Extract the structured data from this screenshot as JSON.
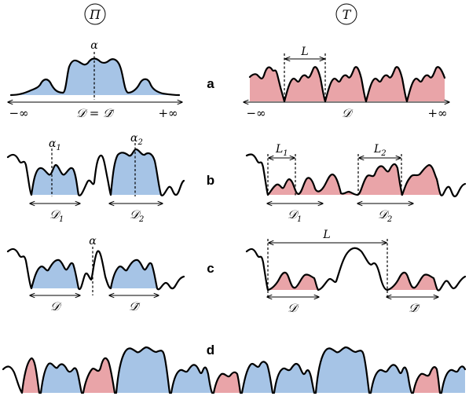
{
  "headers": {
    "left": "Π",
    "right": "T"
  },
  "panels": {
    "a": {
      "label": "a",
      "left": {
        "alpha": "α",
        "domain": "𝒟 = 𝒟̄",
        "minus_inf": "−∞",
        "plus_inf": "+∞"
      },
      "right": {
        "period": "L",
        "domain": "𝒟",
        "minus_inf": "−∞",
        "plus_inf": "+∞"
      }
    },
    "b": {
      "label": "b",
      "left": {
        "alpha1_base": "α",
        "alpha1_sub": "1",
        "alpha2_base": "α",
        "alpha2_sub": "2",
        "d1_base": "𝒟",
        "d1_sub": "1",
        "d2_base": "𝒟",
        "d2_sub": "2"
      },
      "right": {
        "L1_base": "L",
        "L1_sub": "1",
        "L2_base": "L",
        "L2_sub": "2",
        "d1_base": "𝒟",
        "d1_sub": "1",
        "d2_base": "𝒟",
        "d2_sub": "2"
      }
    },
    "c": {
      "label": "c",
      "left": {
        "alpha": "α",
        "domain": "𝒟",
        "domain_bar": "𝒟̄"
      },
      "right": {
        "L": "L",
        "domain": "𝒟",
        "domain_bar": "𝒟̄"
      }
    },
    "d": {
      "label": "d"
    }
  },
  "colors": {
    "blue": "#a6c4e6",
    "red": "#e9a4a8",
    "line": "#000000"
  }
}
